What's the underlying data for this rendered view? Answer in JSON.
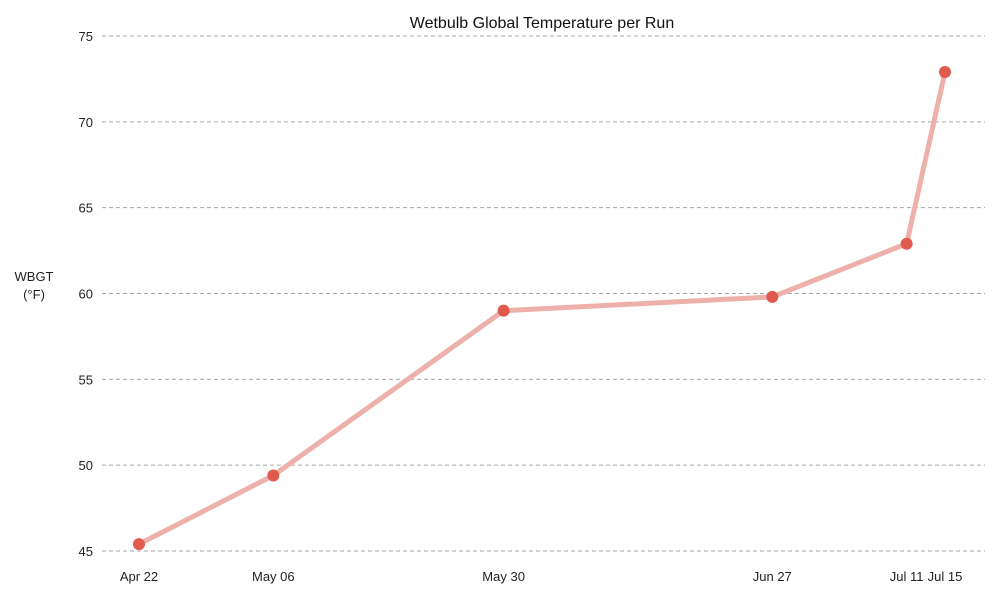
{
  "chart_data": {
    "type": "line",
    "title": "Wetbulb Global Temperature per Run",
    "xlabel": "",
    "ylabel": [
      "WBGT",
      "(°F)"
    ],
    "x": [
      "2023-04-22",
      "2023-05-06",
      "2023-05-30",
      "2023-06-27",
      "2023-07-11",
      "2023-07-15"
    ],
    "x_tick_labels": [
      "Apr 22",
      "May 06",
      "May 30",
      "Jun 27",
      "Jul 11",
      "Jul 15"
    ],
    "series": [
      {
        "values": [
          45.4,
          49.4,
          59.0,
          59.8,
          62.9,
          72.9
        ]
      }
    ],
    "ylim": [
      45,
      75
    ],
    "y_ticks": [
      45,
      50,
      55,
      60,
      65,
      70,
      75
    ],
    "grid": true,
    "line_color": "#EDB0AA",
    "marker_color": "#E05A4D",
    "grid_color": "#A6A6A6"
  }
}
